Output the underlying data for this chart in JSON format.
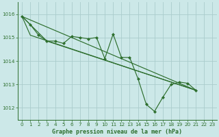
{
  "title": "Graphe pression niveau de la mer (hPa)",
  "background_color": "#cce8e8",
  "grid_color": "#aacccc",
  "line_color": "#2d6e2d",
  "xlim": [
    -0.5,
    23.5
  ],
  "ylim": [
    1011.5,
    1016.5
  ],
  "yticks": [
    1012,
    1013,
    1014,
    1015,
    1016
  ],
  "xtick_labels": [
    "0",
    "1",
    "2",
    "3",
    "4",
    "5",
    "6",
    "7",
    "8",
    "9",
    "10",
    "11",
    "12",
    "13",
    "14",
    "15",
    "16",
    "17",
    "18",
    "19",
    "20",
    "21",
    "22",
    "23"
  ],
  "series": [
    {
      "x": [
        0,
        1,
        2,
        3,
        4,
        5,
        6,
        7,
        8,
        9,
        10,
        11,
        12,
        13,
        14,
        15,
        16,
        17,
        18,
        19,
        20,
        21
      ],
      "y": [
        1015.9,
        1015.55,
        1015.1,
        1014.85,
        1014.85,
        1014.75,
        1015.05,
        1015.0,
        1014.95,
        1015.0,
        1014.1,
        1015.15,
        1014.15,
        1014.15,
        1013.25,
        1012.15,
        1011.85,
        1012.45,
        1013.0,
        1013.1,
        1013.05,
        1012.75
      ],
      "has_markers": true
    },
    {
      "x": [
        0,
        21
      ],
      "y": [
        1015.9,
        1012.75
      ],
      "has_markers": false
    },
    {
      "x": [
        0,
        3,
        21
      ],
      "y": [
        1015.9,
        1014.85,
        1012.75
      ],
      "has_markers": false
    },
    {
      "x": [
        0,
        1,
        21
      ],
      "y": [
        1015.9,
        1015.1,
        1012.75
      ],
      "has_markers": false
    }
  ],
  "marker_size": 2.2,
  "linewidth": 0.85,
  "title_fontsize": 6.0,
  "tick_fontsize": 5.2,
  "tick_color": "#2d6e2d",
  "spine_color": "#2d6e2d"
}
